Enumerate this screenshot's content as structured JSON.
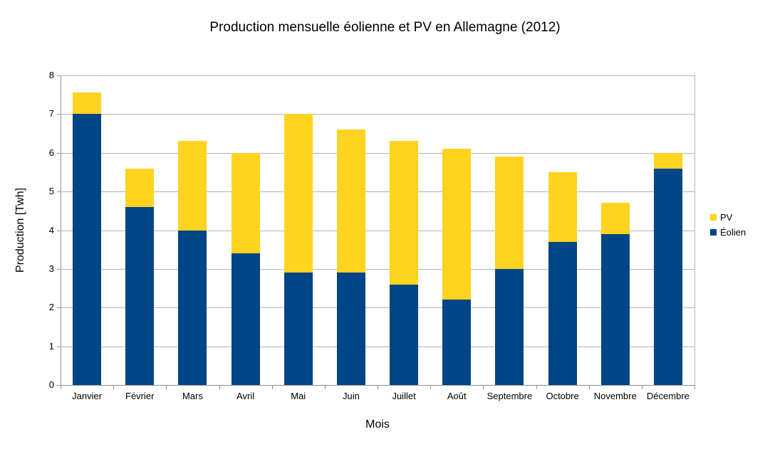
{
  "chart_data": {
    "type": "bar",
    "stacked": true,
    "title": "Production mensuelle éolienne et PV en Allemagne (2012)",
    "xlabel": "Mois",
    "ylabel": "Production [Twh]",
    "categories": [
      "Janvier",
      "Février",
      "Mars",
      "Avril",
      "Mai",
      "Juin",
      "Juillet",
      "Août",
      "Septembre",
      "Octobre",
      "Novembre",
      "Décembre"
    ],
    "series": [
      {
        "name": "PV",
        "color": "#FFD320",
        "values": [
          0.55,
          1.0,
          2.3,
          2.6,
          4.1,
          3.7,
          3.7,
          3.9,
          2.9,
          1.8,
          0.8,
          0.4
        ]
      },
      {
        "name": "Éolien",
        "color": "#004586",
        "values": [
          7.0,
          4.6,
          4.0,
          3.4,
          2.9,
          2.9,
          2.6,
          2.2,
          3.0,
          3.7,
          3.9,
          5.6
        ]
      }
    ],
    "totals": [
      7.55,
      5.6,
      6.3,
      6.0,
      7.0,
      6.6,
      6.3,
      6.1,
      5.9,
      5.5,
      4.7,
      6.0
    ],
    "ylim": [
      0,
      8
    ],
    "yticks": [
      0,
      1,
      2,
      3,
      4,
      5,
      6,
      7,
      8
    ],
    "grid": true,
    "legend_position": "right",
    "colors": {
      "pv": "#FFD320",
      "eolien": "#004586",
      "gridline": "#b3b3b3",
      "axis": "#8f8f8f",
      "text": "#000000",
      "background": "#ffffff"
    }
  }
}
